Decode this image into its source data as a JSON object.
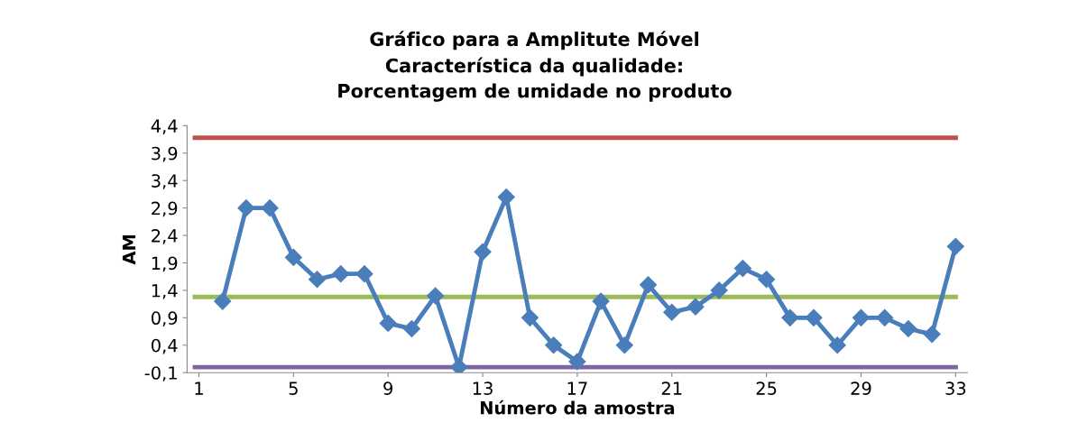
{
  "chart_data": {
    "type": "line",
    "title": "Gráfico para a Amplitute Móvel\nCaracterística da qualidade:\nPorcentagem de umidade no produto",
    "xlabel": "Número da amostra",
    "ylabel": "AM",
    "x": [
      2,
      3,
      4,
      5,
      6,
      7,
      8,
      9,
      10,
      11,
      12,
      13,
      14,
      15,
      16,
      17,
      18,
      19,
      20,
      21,
      22,
      23,
      24,
      25,
      26,
      27,
      28,
      29,
      30,
      31,
      32,
      33
    ],
    "series": [
      {
        "color": "#4a7ebb",
        "values": [
          1.2,
          2.9,
          2.9,
          2.0,
          1.6,
          1.7,
          1.7,
          0.8,
          0.7,
          1.3,
          0.0,
          2.1,
          3.1,
          0.9,
          0.4,
          0.1,
          1.2,
          0.4,
          1.5,
          1.0,
          1.1,
          1.4,
          1.8,
          1.6,
          0.9,
          0.9,
          0.4,
          0.9,
          0.9,
          0.7,
          0.6,
          2.2
        ]
      }
    ],
    "ref_lines": [
      {
        "axis": "y",
        "value": 4.18,
        "label": null,
        "color": "#c0504d"
      },
      {
        "axis": "y",
        "value": 1.28,
        "label": null,
        "color": "#9bbb59"
      },
      {
        "axis": "y",
        "value": 0.0,
        "label": null,
        "color": "#8064a2"
      }
    ],
    "xlim": [
      0.5,
      33.5
    ],
    "xticks": [
      1,
      5,
      9,
      13,
      17,
      21,
      25,
      29,
      33
    ],
    "ylim": [
      -0.1,
      4.4
    ],
    "yticks": [
      {
        "value": -0.1,
        "label": "-0,1"
      },
      {
        "value": 0.4,
        "label": "0,4"
      },
      {
        "value": 0.9,
        "label": "0,9"
      },
      {
        "value": 1.4,
        "label": "1,4"
      },
      {
        "value": 1.9,
        "label": "1,9"
      },
      {
        "value": 2.4,
        "label": "2,4"
      },
      {
        "value": 2.9,
        "label": "2,9"
      },
      {
        "value": 3.4,
        "label": "3,4"
      },
      {
        "value": 3.9,
        "label": "3,9"
      },
      {
        "value": 4.4,
        "label": "4,4"
      }
    ],
    "grid": false,
    "legend": false,
    "marker": "diamond",
    "line_style": "solid"
  }
}
